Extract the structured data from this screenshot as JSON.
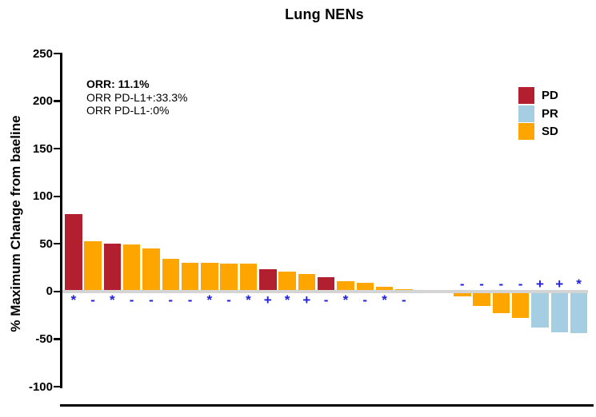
{
  "title": "Lung NENs",
  "annotation": {
    "line1": "ORR: 11.1%",
    "line2": "ORR PD-L1+:33.3%",
    "line3": "ORR PD-L1-:0%"
  },
  "chart_data": {
    "type": "bar",
    "title": "Lung NENs",
    "ylabel": "% Maximum Change from baeline",
    "xlabel": "",
    "ylim": [
      -100,
      250
    ],
    "yticks": [
      250,
      200,
      150,
      100,
      50,
      0,
      -50,
      -100
    ],
    "grid": false,
    "legend_position": "top-right",
    "legend": [
      {
        "label": "PD",
        "color": "#B2202F"
      },
      {
        "label": "PR",
        "color": "#A6CEE3"
      },
      {
        "label": "SD",
        "color": "#FFA500"
      }
    ],
    "colors": {
      "PD": "#B2202F",
      "PR": "#A6CEE3",
      "SD": "#FFA500"
    },
    "marker_color": "#2020DF",
    "bars": [
      {
        "value": 81,
        "response": "PD",
        "marker": "*"
      },
      {
        "value": 53,
        "response": "SD",
        "marker": "-"
      },
      {
        "value": 50,
        "response": "PD",
        "marker": "*"
      },
      {
        "value": 49,
        "response": "SD",
        "marker": "-"
      },
      {
        "value": 45,
        "response": "SD",
        "marker": "-"
      },
      {
        "value": 34,
        "response": "SD",
        "marker": "-"
      },
      {
        "value": 30,
        "response": "SD",
        "marker": "-"
      },
      {
        "value": 30,
        "response": "SD",
        "marker": "*"
      },
      {
        "value": 29,
        "response": "SD",
        "marker": "-"
      },
      {
        "value": 29,
        "response": "SD",
        "marker": "*"
      },
      {
        "value": 23,
        "response": "PD",
        "marker": "+"
      },
      {
        "value": 21,
        "response": "SD",
        "marker": "*"
      },
      {
        "value": 18,
        "response": "SD",
        "marker": "+"
      },
      {
        "value": 15,
        "response": "PD",
        "marker": "-"
      },
      {
        "value": 11,
        "response": "SD",
        "marker": "*"
      },
      {
        "value": 9,
        "response": "SD",
        "marker": "-"
      },
      {
        "value": 5,
        "response": "SD",
        "marker": "*"
      },
      {
        "value": 2,
        "response": "SD",
        "marker": "-"
      },
      {
        "value": 0,
        "response": "SD",
        "marker": ""
      },
      {
        "value": 0,
        "response": "SD",
        "marker": ""
      },
      {
        "value": -5,
        "response": "SD",
        "marker": "-"
      },
      {
        "value": -15,
        "response": "SD",
        "marker": "-"
      },
      {
        "value": -23,
        "response": "SD",
        "marker": "-"
      },
      {
        "value": -28,
        "response": "SD",
        "marker": "-"
      },
      {
        "value": -38,
        "response": "PR",
        "marker": "+"
      },
      {
        "value": -43,
        "response": "PR",
        "marker": "+"
      },
      {
        "value": -44,
        "response": "PR",
        "marker": "*"
      }
    ]
  }
}
